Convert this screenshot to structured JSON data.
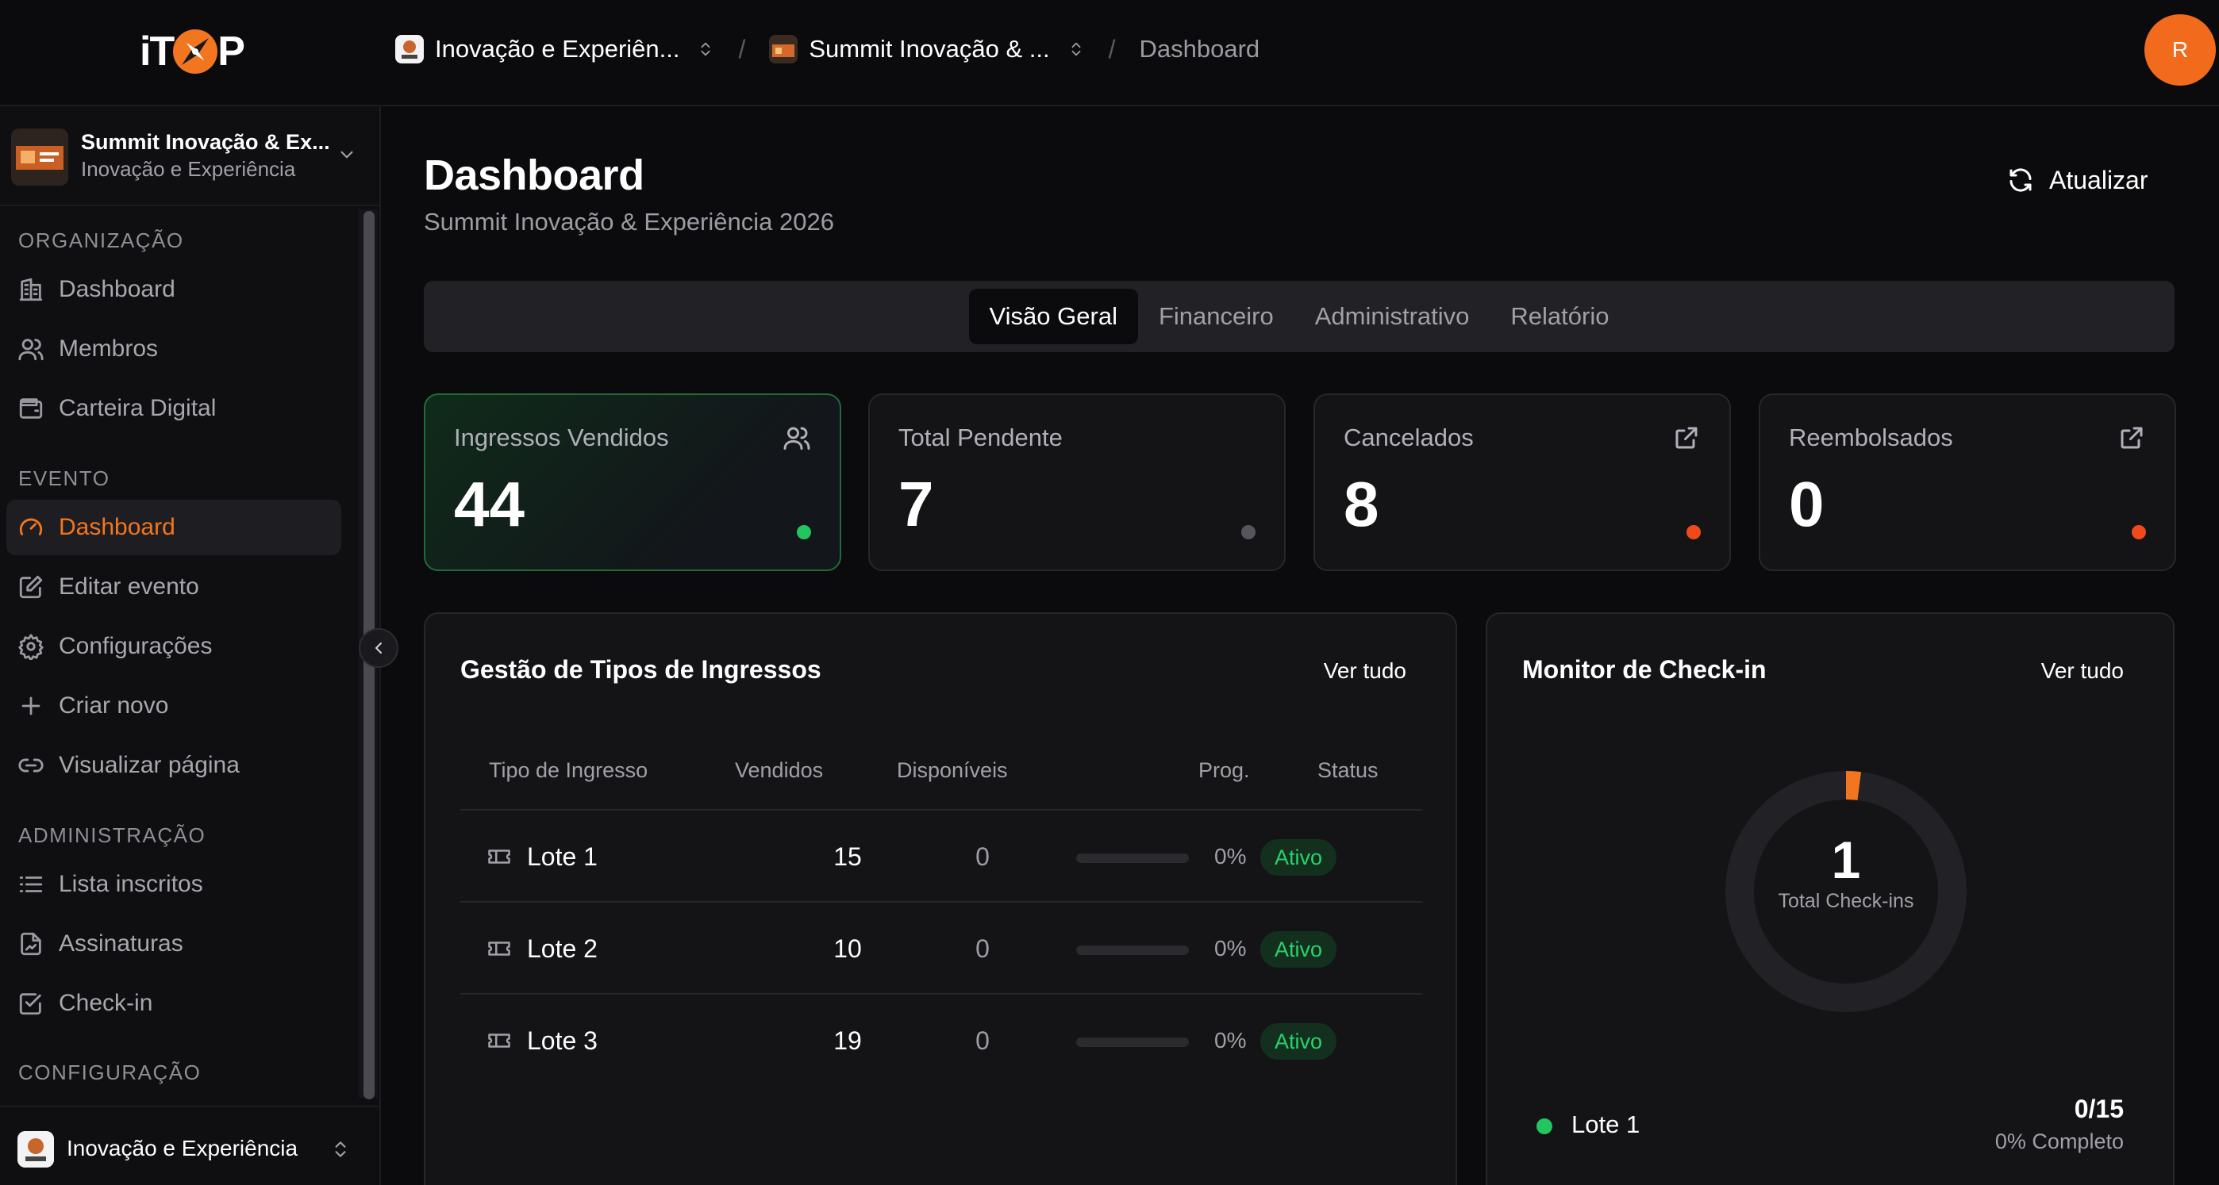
{
  "topbar": {
    "logo_left": "iT",
    "logo_right": "P",
    "crumbs": [
      {
        "label": "Inovação e Experiên..."
      },
      {
        "label": "Summit Inovação & ..."
      }
    ],
    "current": "Dashboard",
    "avatar_initial": "R"
  },
  "sidebar": {
    "event": {
      "title": "Summit Inovação & Ex...",
      "subtitle": "Inovação e Experiência"
    },
    "sections": [
      {
        "title": "ORGANIZAÇÃO",
        "items": [
          {
            "label": "Dashboard",
            "icon": "building-icon"
          },
          {
            "label": "Membros",
            "icon": "users-icon"
          },
          {
            "label": "Carteira Digital",
            "icon": "wallet-icon"
          }
        ]
      },
      {
        "title": "EVENTO",
        "items": [
          {
            "label": "Dashboard",
            "icon": "gauge-icon",
            "active": true
          },
          {
            "label": "Editar evento",
            "icon": "edit-icon"
          },
          {
            "label": "Configurações",
            "icon": "gear-icon"
          },
          {
            "label": "Criar novo",
            "icon": "plus-icon"
          },
          {
            "label": "Visualizar página",
            "icon": "link-icon"
          }
        ]
      },
      {
        "title": "ADMINISTRAÇÃO",
        "items": [
          {
            "label": "Lista inscritos",
            "icon": "list-icon"
          },
          {
            "label": "Assinaturas",
            "icon": "signature-icon"
          },
          {
            "label": "Check-in",
            "icon": "checkbox-icon"
          }
        ]
      },
      {
        "title": "CONFIGURAÇÃO",
        "items": []
      }
    ],
    "org_name": "Inovação e Experiência"
  },
  "main": {
    "title": "Dashboard",
    "subtitle": "Summit Inovação & Experiência 2026",
    "refresh_label": "Atualizar",
    "tabs": [
      {
        "label": "Visão Geral",
        "active": true
      },
      {
        "label": "Financeiro"
      },
      {
        "label": "Administrativo"
      },
      {
        "label": "Relatório"
      }
    ],
    "kpis": [
      {
        "label": "Ingressos Vendidos",
        "value": "44",
        "icon": "users-icon",
        "dot_color": "#22c55e"
      },
      {
        "label": "Total Pendente",
        "value": "7",
        "icon": "",
        "dot_color": "#55555c"
      },
      {
        "label": "Cancelados",
        "value": "8",
        "icon": "external-link-icon",
        "dot_color": "#f04a1a"
      },
      {
        "label": "Reembolsados",
        "value": "0",
        "icon": "external-link-icon",
        "dot_color": "#f04a1a"
      }
    ],
    "tickets_panel": {
      "title": "Gestão de Tipos de Ingressos",
      "link": "Ver tudo",
      "columns": [
        "Tipo de Ingresso",
        "Vendidos",
        "Disponíveis",
        "Prog.",
        "Status"
      ],
      "rows": [
        {
          "name": "Lote 1",
          "sold": "15",
          "available": "0",
          "progress": 0,
          "progress_label": "0%",
          "status": "Ativo"
        },
        {
          "name": "Lote 2",
          "sold": "10",
          "available": "0",
          "progress": 0,
          "progress_label": "0%",
          "status": "Ativo"
        },
        {
          "name": "Lote 3",
          "sold": "19",
          "available": "0",
          "progress": 0,
          "progress_label": "0%",
          "status": "Ativo"
        }
      ]
    },
    "checkin_panel": {
      "title": "Monitor de Check-in",
      "link": "Ver tudo",
      "total": "1",
      "total_label": "Total Check-ins",
      "donut_fraction": 0.02,
      "items": [
        {
          "name": "Lote 1",
          "count": "0/15",
          "pct": "0% Completo"
        }
      ]
    }
  },
  "colors": {
    "accent": "#f2761f",
    "success": "#22c55e",
    "danger": "#f04a1a"
  }
}
